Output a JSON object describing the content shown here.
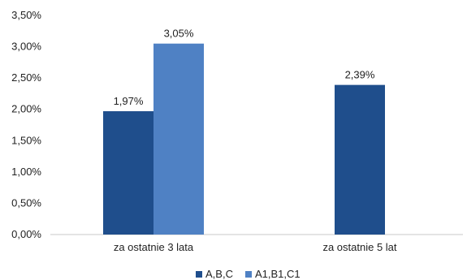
{
  "chart_data": {
    "type": "bar",
    "categories": [
      "za ostatnie 3 lata",
      "za ostatnie 5 lat"
    ],
    "series": [
      {
        "name": "A,B,C",
        "color": "#1F4E8C",
        "values": [
          1.97,
          2.39
        ],
        "labels": [
          "1,97%",
          "2,39%"
        ]
      },
      {
        "name": "A1,B1,C1",
        "color": "#4F81C4",
        "values": [
          3.05,
          null
        ],
        "labels": [
          "3,05%",
          ""
        ]
      }
    ],
    "ylim": [
      0,
      3.5
    ],
    "yticks": [
      "0,00%",
      "0,50%",
      "1,00%",
      "1,50%",
      "2,00%",
      "2,50%",
      "3,00%",
      "3,50%"
    ],
    "grid": false,
    "legend": "bottom"
  }
}
